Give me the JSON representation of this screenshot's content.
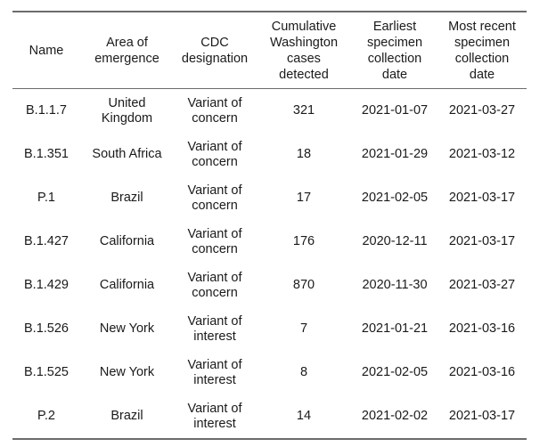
{
  "table": {
    "headers": [
      [
        "Name"
      ],
      [
        "Area of",
        "emergence"
      ],
      [
        "CDC",
        "designation"
      ],
      [
        "Cumulative",
        "Washington",
        "cases",
        "detected"
      ],
      [
        "Earliest",
        "specimen",
        "collection",
        "date"
      ],
      [
        "Most recent",
        "specimen",
        "collection",
        "date"
      ]
    ],
    "rows": [
      {
        "name": "B.1.1.7",
        "area": [
          "United",
          "Kingdom"
        ],
        "designation": [
          "Variant of",
          "concern"
        ],
        "cases": "321",
        "earliest": "2021-01-07",
        "recent": "2021-03-27"
      },
      {
        "name": "B.1.351",
        "area": [
          "South Africa"
        ],
        "designation": [
          "Variant of",
          "concern"
        ],
        "cases": "18",
        "earliest": "2021-01-29",
        "recent": "2021-03-12"
      },
      {
        "name": "P.1",
        "area": [
          "Brazil"
        ],
        "designation": [
          "Variant of",
          "concern"
        ],
        "cases": "17",
        "earliest": "2021-02-05",
        "recent": "2021-03-17"
      },
      {
        "name": "B.1.427",
        "area": [
          "California"
        ],
        "designation": [
          "Variant of",
          "concern"
        ],
        "cases": "176",
        "earliest": "2020-12-11",
        "recent": "2021-03-17"
      },
      {
        "name": "B.1.429",
        "area": [
          "California"
        ],
        "designation": [
          "Variant of",
          "concern"
        ],
        "cases": "870",
        "earliest": "2020-11-30",
        "recent": "2021-03-27"
      },
      {
        "name": "B.1.526",
        "area": [
          "New York"
        ],
        "designation": [
          "Variant of",
          "interest"
        ],
        "cases": "7",
        "earliest": "2021-01-21",
        "recent": "2021-03-16"
      },
      {
        "name": "B.1.525",
        "area": [
          "New York"
        ],
        "designation": [
          "Variant of",
          "interest"
        ],
        "cases": "8",
        "earliest": "2021-02-05",
        "recent": "2021-03-16"
      },
      {
        "name": "P.2",
        "area": [
          "Brazil"
        ],
        "designation": [
          "Variant of",
          "interest"
        ],
        "cases": "14",
        "earliest": "2021-02-02",
        "recent": "2021-03-17"
      }
    ]
  }
}
